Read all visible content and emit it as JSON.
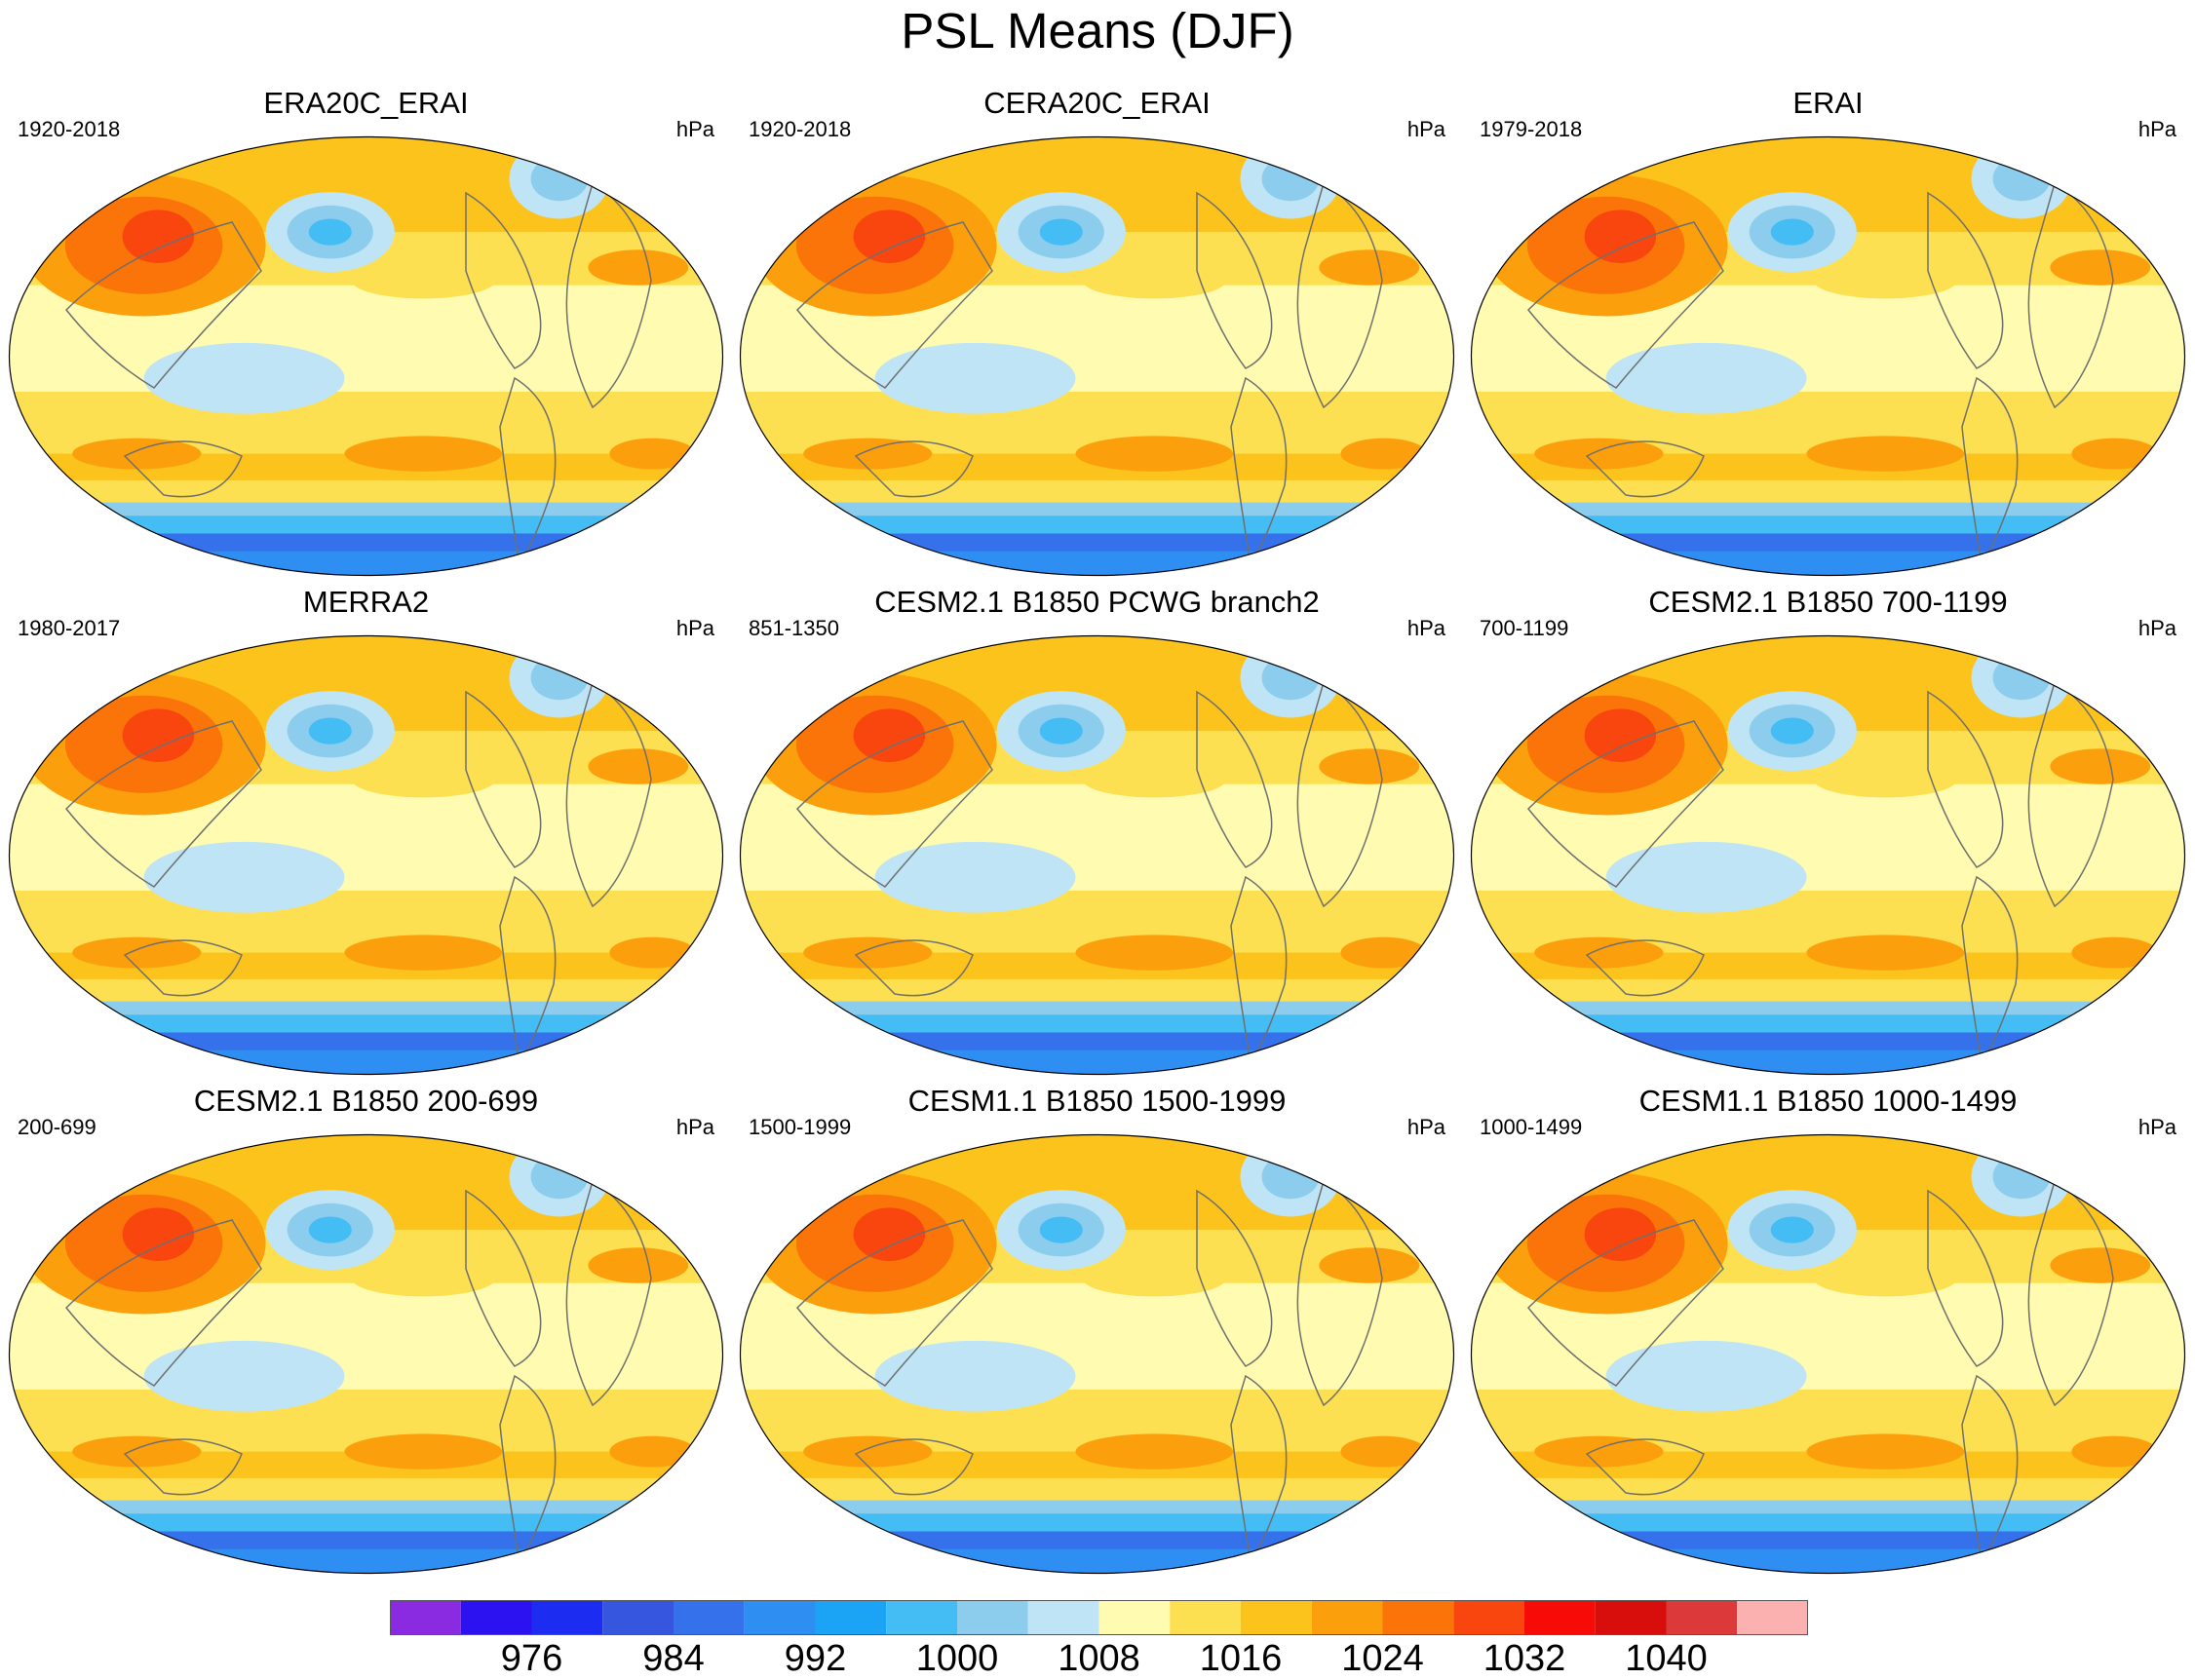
{
  "title": "PSL Means (DJF)",
  "colorbar": {
    "colors": [
      "#8a2be2",
      "#2c12f0",
      "#1c2cf0",
      "#3656e0",
      "#3471eb",
      "#2e8ef2",
      "#1ba3f5",
      "#44bdf4",
      "#8ccdee",
      "#bfe4f6",
      "#fffcb2",
      "#fde052",
      "#fbc31c",
      "#fba00c",
      "#fb740a",
      "#f9460f",
      "#f70b06",
      "#d70e0b",
      "#dc3a3a",
      "#fcb1b1"
    ],
    "labels": [
      "976",
      "984",
      "992",
      "1000",
      "1008",
      "1016",
      "1024",
      "1032",
      "1040"
    ]
  },
  "chart_data": [
    {
      "type": "heatmap",
      "title": "ERA20C_ERAI",
      "period": "1920-2018",
      "units": "hPa"
    },
    {
      "type": "heatmap",
      "title": "CERA20C_ERAI",
      "period": "1920-2018",
      "units": "hPa"
    },
    {
      "type": "heatmap",
      "title": "ERAI",
      "period": "1979-2018",
      "units": "hPa"
    },
    {
      "type": "heatmap",
      "title": "MERRA2",
      "period": "1980-2017",
      "units": "hPa"
    },
    {
      "type": "heatmap",
      "title": "CESM2.1 B1850 PCWG branch2",
      "period": "851-1350",
      "units": "hPa"
    },
    {
      "type": "heatmap",
      "title": "CESM2.1 B1850 700-1199",
      "period": "700-1199",
      "units": "hPa"
    },
    {
      "type": "heatmap",
      "title": "CESM2.1 B1850 200-699",
      "period": "200-699",
      "units": "hPa"
    },
    {
      "type": "heatmap",
      "title": "CESM1.1 B1850 1500-1999",
      "period": "1500-1999",
      "units": "hPa"
    },
    {
      "type": "heatmap",
      "title": "CESM1.1 B1850 1000-1499",
      "period": "1000-1499",
      "units": "hPa"
    }
  ]
}
